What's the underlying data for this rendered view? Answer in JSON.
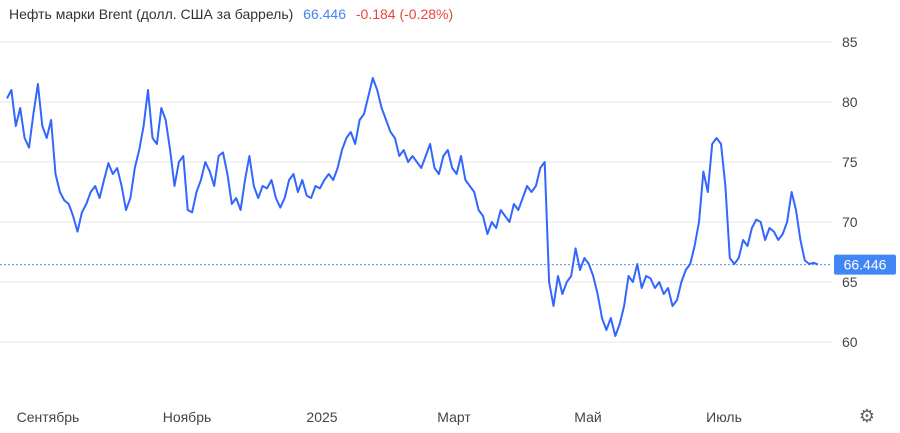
{
  "header": {
    "title": "Нефть марки Brent (долл. США за баррель)",
    "last_value": "66.446",
    "change": "-0.184 (-0.28%)"
  },
  "current_price_label": "66.446",
  "settings_icon": "gear-icon",
  "colors": {
    "line": "#3366ff",
    "price_label_bg": "#4285f4",
    "change": "#e8453c",
    "grid": "#e6e6e6"
  },
  "chart_data": {
    "type": "line",
    "title": "Нефть марки Brent (долл. США за баррель)",
    "xlabel": "",
    "ylabel": "",
    "ylim": [
      53,
      88
    ],
    "yticks": [
      60,
      65,
      70,
      75,
      80,
      85
    ],
    "x_tick_labels": [
      "Сентябрь",
      "Ноябрь",
      "2025",
      "Март",
      "Май",
      "Июль"
    ],
    "grid": true,
    "current_value": 66.446,
    "series": [
      {
        "values": [
          80.3,
          81.0,
          78.0,
          79.5,
          77.0,
          76.2,
          79.0,
          81.5,
          78.0,
          77.0,
          78.5,
          74.0,
          72.5,
          71.8,
          71.5,
          70.5,
          69.2,
          70.8,
          71.5,
          72.5,
          73.0,
          72.0,
          73.5,
          74.9,
          74.0,
          74.5,
          73.0,
          71.0,
          72.0,
          74.5,
          76.0,
          78.0,
          81.0,
          77.0,
          76.5,
          79.5,
          78.5,
          76.0,
          73.0,
          75.0,
          75.5,
          71.0,
          70.8,
          72.5,
          73.5,
          75.0,
          74.2,
          73.0,
          75.5,
          75.8,
          74.0,
          71.5,
          72.0,
          71.0,
          73.5,
          75.5,
          73.0,
          72.0,
          73.0,
          72.8,
          73.5,
          72.0,
          71.2,
          72.0,
          73.5,
          74.0,
          72.5,
          73.5,
          72.2,
          72.0,
          73.0,
          72.8,
          73.5,
          74.0,
          73.5,
          74.5,
          76.0,
          77.0,
          77.5,
          76.5,
          78.5,
          79.0,
          80.5,
          82.0,
          81.0,
          79.5,
          78.5,
          77.5,
          77.0,
          75.5,
          76.0,
          75.0,
          75.5,
          75.0,
          74.5,
          75.5,
          76.5,
          74.5,
          74.0,
          75.5,
          76.0,
          74.5,
          74.0,
          75.5,
          73.5,
          73.0,
          72.5,
          71.0,
          70.5,
          69.0,
          70.0,
          69.5,
          71.0,
          70.5,
          70.0,
          71.5,
          71.0,
          72.0,
          73.0,
          72.5,
          73.0,
          74.5,
          75.0,
          65.0,
          63.0,
          65.5,
          64.0,
          65.0,
          65.5,
          67.8,
          66.0,
          67.0,
          66.5,
          65.5,
          64.0,
          62.0,
          61.0,
          62.0,
          60.5,
          61.5,
          63.0,
          65.5,
          65.0,
          66.5,
          64.5,
          65.5,
          65.3,
          64.5,
          65.0,
          64.0,
          64.5,
          63.0,
          63.5,
          65.0,
          66.0,
          66.5,
          68.0,
          70.0,
          74.2,
          72.5,
          76.5,
          77.0,
          76.5,
          73.0,
          67.0,
          66.5,
          67.0,
          68.5,
          68.0,
          69.5,
          70.2,
          70.0,
          68.5,
          69.5,
          69.2,
          68.5,
          69.0,
          70.0,
          72.5,
          71.0,
          68.5,
          66.8,
          66.5,
          66.6,
          66.446
        ]
      }
    ]
  }
}
